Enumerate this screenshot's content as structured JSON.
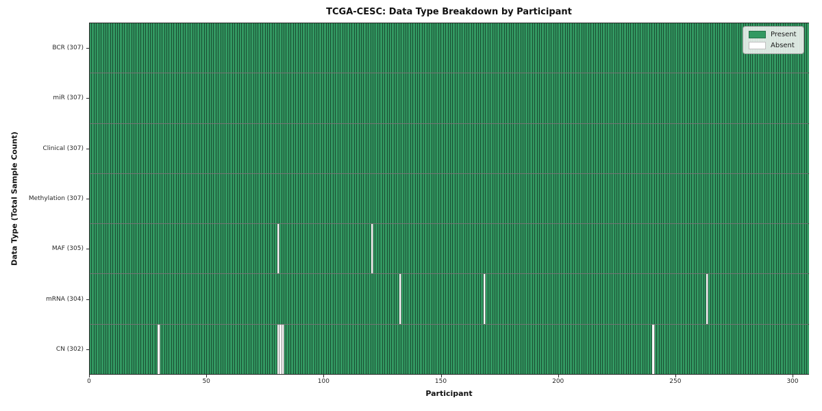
{
  "title": "TCGA-CESC: Data Type Breakdown by Participant",
  "chart_data": {
    "type": "heatmap",
    "title": "TCGA-CESC: Data Type Breakdown by Participant",
    "xlabel": "Participant",
    "ylabel": "Data Type (Total Sample Count)",
    "n_participants": 307,
    "xlim": [
      0,
      307
    ],
    "x_ticks": [
      0,
      50,
      100,
      150,
      200,
      250,
      300
    ],
    "grid": false,
    "legend_position": "upper right",
    "rows": [
      {
        "label": "BCR (307)",
        "data_type": "BCR",
        "present_count": 307,
        "absent_participants": []
      },
      {
        "label": "miR (307)",
        "data_type": "miR",
        "present_count": 307,
        "absent_participants": []
      },
      {
        "label": "Clinical (307)",
        "data_type": "Clinical",
        "present_count": 307,
        "absent_participants": []
      },
      {
        "label": "Methylation (307)",
        "data_type": "Methylation",
        "present_count": 307,
        "absent_participants": []
      },
      {
        "label": "MAF (305)",
        "data_type": "MAF",
        "present_count": 305,
        "absent_participants": [
          80,
          120
        ]
      },
      {
        "label": "mRNA (304)",
        "data_type": "mRNA",
        "present_count": 304,
        "absent_participants": [
          132,
          168,
          263
        ]
      },
      {
        "label": "CN (302)",
        "data_type": "CN",
        "present_count": 302,
        "absent_participants": [
          29,
          80,
          81,
          82,
          240
        ]
      }
    ],
    "legend": [
      {
        "label": "Present",
        "color": "#339962"
      },
      {
        "label": "Absent",
        "color": "#ffffff"
      }
    ],
    "colors": {
      "present": "#339962",
      "absent": "#ffffff",
      "bar_edge": "rgba(0,0,0,0.5)",
      "spine": "#262626",
      "text": "#111111"
    }
  }
}
